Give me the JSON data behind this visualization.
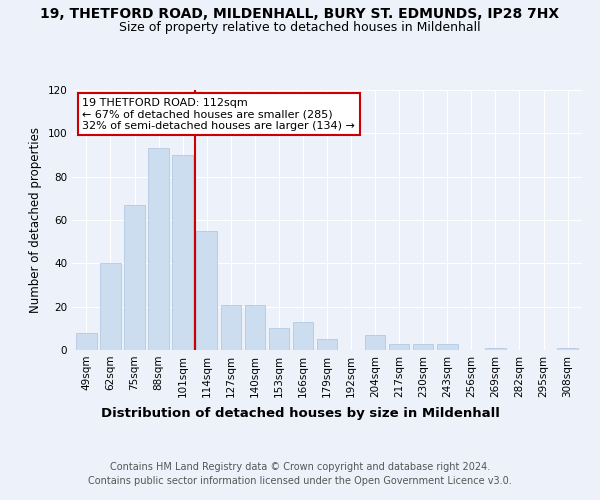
{
  "title1": "19, THETFORD ROAD, MILDENHALL, BURY ST. EDMUNDS, IP28 7HX",
  "title2": "Size of property relative to detached houses in Mildenhall",
  "xlabel": "Distribution of detached houses by size in Mildenhall",
  "ylabel": "Number of detached properties",
  "categories": [
    "49sqm",
    "62sqm",
    "75sqm",
    "88sqm",
    "101sqm",
    "114sqm",
    "127sqm",
    "140sqm",
    "153sqm",
    "166sqm",
    "179sqm",
    "192sqm",
    "204sqm",
    "217sqm",
    "230sqm",
    "243sqm",
    "256sqm",
    "269sqm",
    "282sqm",
    "295sqm",
    "308sqm"
  ],
  "values": [
    8,
    40,
    67,
    93,
    90,
    55,
    21,
    21,
    10,
    13,
    5,
    0,
    7,
    3,
    3,
    3,
    0,
    1,
    0,
    0,
    1
  ],
  "bar_color": "#ccddf0",
  "bar_edge_color": "#aac4e0",
  "red_line_x": 4.5,
  "annotation_line1": "19 THETFORD ROAD: 112sqm",
  "annotation_line2": "← 67% of detached houses are smaller (285)",
  "annotation_line3": "32% of semi-detached houses are larger (134) →",
  "annotation_box_color": "white",
  "annotation_box_edge": "#cc0000",
  "red_line_color": "#cc0000",
  "ylim": [
    0,
    120
  ],
  "yticks": [
    0,
    20,
    40,
    60,
    80,
    100,
    120
  ],
  "footer1": "Contains HM Land Registry data © Crown copyright and database right 2024.",
  "footer2": "Contains public sector information licensed under the Open Government Licence v3.0.",
  "bg_color": "#edf2fa",
  "title1_fontsize": 10,
  "title2_fontsize": 9,
  "xlabel_fontsize": 9.5,
  "ylabel_fontsize": 8.5,
  "tick_fontsize": 7.5,
  "footer_fontsize": 7,
  "annot_fontsize": 8
}
